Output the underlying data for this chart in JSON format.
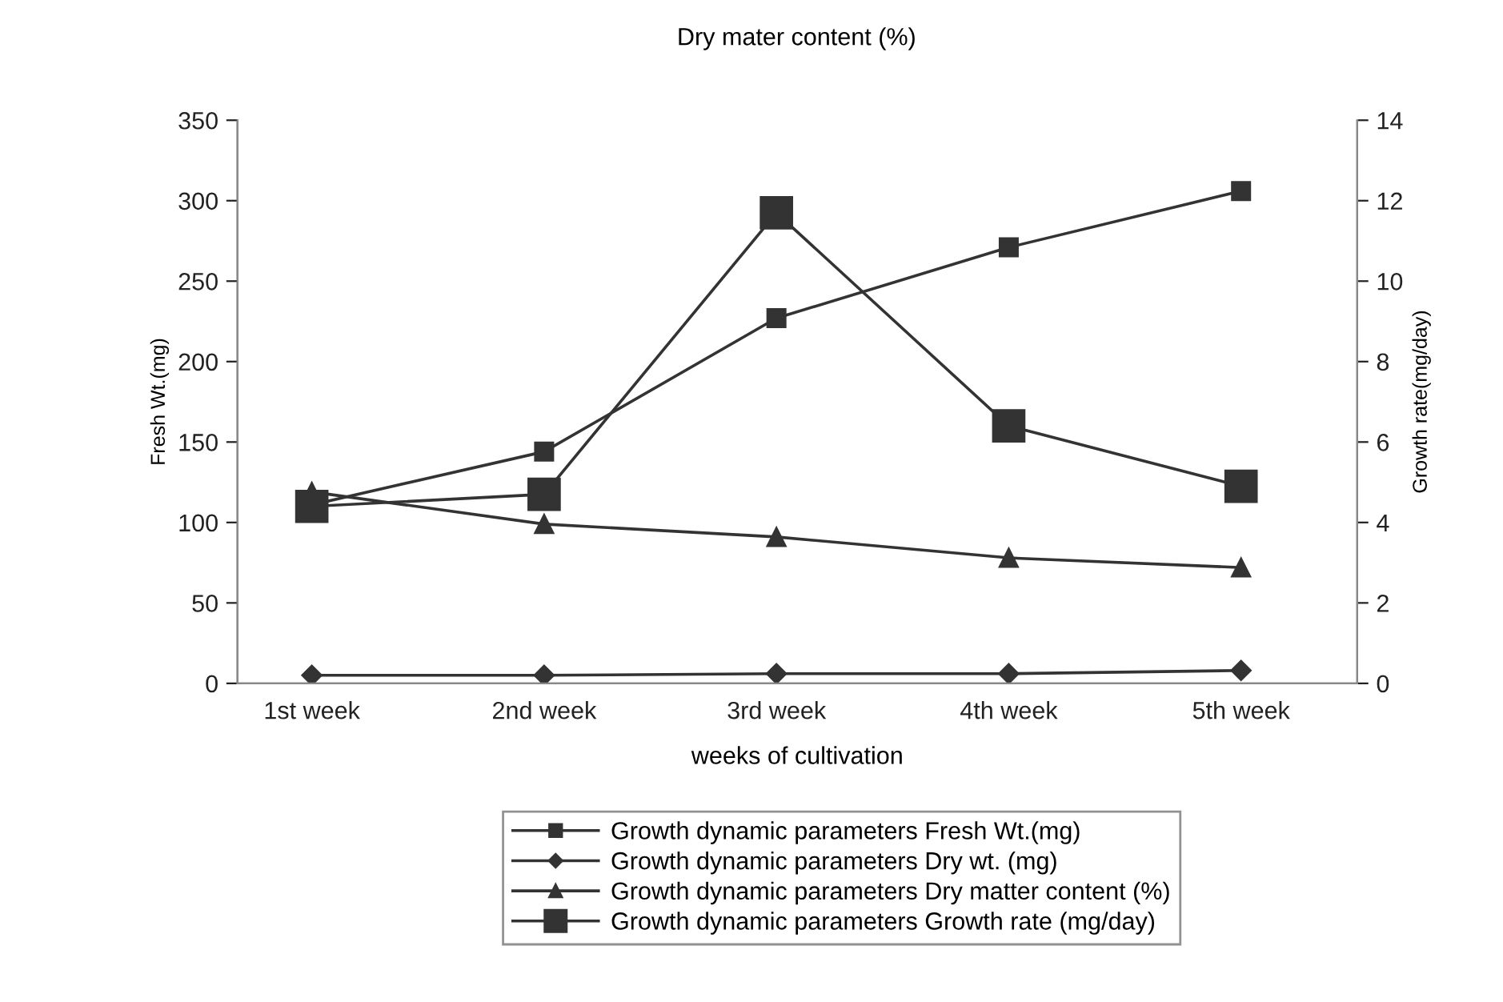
{
  "chart_data": {
    "type": "line",
    "title": "Dry mater content (%)",
    "xlabel": "weeks of cultivation",
    "ylabel": "Fresh Wt.(mg)",
    "y2label": "Growth rate(mg/day)",
    "categories": [
      "1st week",
      "2nd week",
      "3rd week",
      "4th week",
      "5th week"
    ],
    "series": [
      {
        "name": "Growth dynamic parameters Fresh Wt.(mg)",
        "color": "#333333",
        "marker": "square",
        "values": [
          111,
          144,
          227,
          271,
          306
        ]
      },
      {
        "name": "Growth dynamic parameters Dry wt. (mg)",
        "color": "#333333",
        "marker": "diamond",
        "values": [
          5,
          5,
          6,
          6,
          8
        ]
      },
      {
        "name": "Growth dynamic parameters Dry matter content (%)",
        "color": "#333333",
        "marker": "triangle",
        "values": [
          119,
          99,
          91,
          78,
          72
        ]
      },
      {
        "name": "Growth dynamic parameters Growth rate (mg/day)",
        "color": "#333333",
        "marker": "square",
        "axis": "y2",
        "values": [
          4.4,
          4.7,
          11.7,
          6.4,
          4.9
        ]
      }
    ],
    "ylim": [
      0,
      350
    ],
    "yticks": [
      0,
      50,
      100,
      150,
      200,
      250,
      300,
      350
    ],
    "y2lim": [
      0,
      14
    ],
    "y2ticks": [
      0,
      2,
      4,
      6,
      8,
      10,
      12,
      14
    ],
    "legend": "bottom",
    "grid": false
  }
}
